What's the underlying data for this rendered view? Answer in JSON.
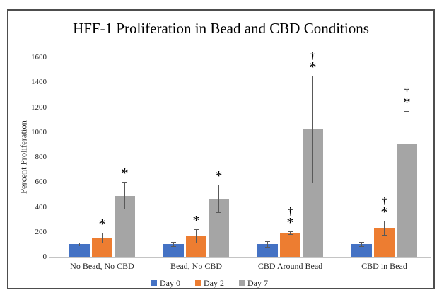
{
  "chart_data": {
    "type": "bar",
    "title": "HFF-1 Proliferation in Bead and CBD Conditions",
    "xlabel": "",
    "ylabel": "Percent Proliferation",
    "ylim": [
      0,
      1600
    ],
    "yticks": [
      0,
      200,
      400,
      600,
      800,
      1000,
      1200,
      1400,
      1600
    ],
    "grid": false,
    "legend_position": "bottom-center",
    "categories": [
      "No Bead, No CBD",
      "Bead, No CBD",
      "CBD Around Bead",
      "CBD in Bead"
    ],
    "series": [
      {
        "name": "Day 0",
        "color": "#4472C4",
        "values": [
          100,
          100,
          100,
          100
        ],
        "error_plus_minus": [
          15,
          20,
          25,
          20
        ],
        "sig_markers": [
          [],
          [],
          [],
          []
        ]
      },
      {
        "name": "Day 2",
        "color": "#ED7D31",
        "values": [
          150,
          165,
          190,
          230
        ],
        "error_plus_minus": [
          45,
          55,
          15,
          60
        ],
        "sig_markers": [
          [
            "*"
          ],
          [
            "*"
          ],
          [
            "†",
            "*"
          ],
          [
            "†",
            "*"
          ]
        ]
      },
      {
        "name": "Day 7",
        "color": "#A5A5A5",
        "values": [
          490,
          465,
          1020,
          910
        ],
        "error_plus_minus": [
          110,
          115,
          430,
          260
        ],
        "sig_markers": [
          [
            "*"
          ],
          [
            "*"
          ],
          [
            "†",
            "*"
          ],
          [
            "†",
            "*"
          ]
        ]
      }
    ],
    "error_bar_color": "#595959",
    "axis_line_color": "#C4C4C4",
    "text_color": "#262626",
    "frame_border_color": "#4D4D4D"
  }
}
